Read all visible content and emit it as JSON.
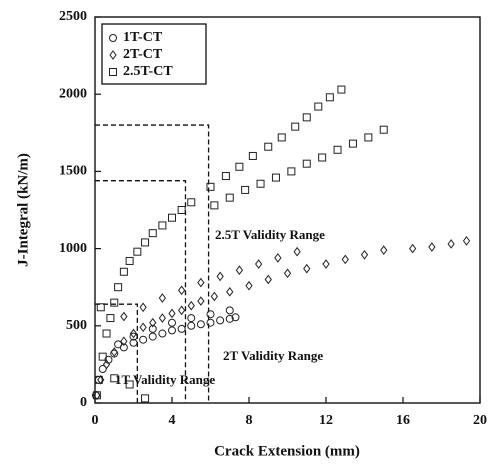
{
  "chart_data": {
    "type": "scatter",
    "x_label": "Crack Extension (mm)",
    "y_label": "J-Integral (kN/m)",
    "xlim": [
      0,
      20
    ],
    "xticks": [
      0,
      4,
      8,
      12,
      16,
      20
    ],
    "ylim": [
      0,
      2500
    ],
    "yticks": [
      0,
      500,
      1000,
      1500,
      2000,
      2500
    ],
    "legend": "upper left",
    "series": [
      {
        "name": "1T-CT",
        "marker": "circle",
        "color": "#222222",
        "x": [
          0.05,
          0.2,
          0.4,
          0.7,
          1.0,
          1.5,
          2.0,
          2.5,
          3.0,
          3.5,
          4.0,
          4.5,
          5.0,
          5.5,
          6.0,
          6.5,
          7.0,
          7.3,
          1.2,
          2.0,
          3.0,
          4.0,
          5.0,
          6.0,
          7.0
        ],
        "values": [
          50,
          150,
          220,
          280,
          320,
          360,
          390,
          410,
          430,
          450,
          470,
          480,
          500,
          510,
          520,
          535,
          545,
          555,
          380,
          430,
          480,
          520,
          550,
          575,
          600
        ]
      },
      {
        "name": "2T-CT",
        "marker": "diamond",
        "color": "#222222",
        "x": [
          0.1,
          0.3,
          0.6,
          1.0,
          1.5,
          2.0,
          2.5,
          3.0,
          3.5,
          4.0,
          4.5,
          5.0,
          5.5,
          6.2,
          7.0,
          8.0,
          9.0,
          10.0,
          11.0,
          12.0,
          13.0,
          14.0,
          15.0,
          16.5,
          17.5,
          18.5,
          19.3,
          1.5,
          2.5,
          3.5,
          4.5,
          5.5,
          6.5,
          7.5,
          8.5,
          9.5,
          10.5
        ],
        "values": [
          50,
          150,
          250,
          330,
          400,
          450,
          490,
          520,
          550,
          580,
          600,
          630,
          660,
          690,
          720,
          760,
          800,
          840,
          870,
          900,
          930,
          960,
          990,
          1000,
          1010,
          1030,
          1050,
          560,
          620,
          680,
          730,
          780,
          820,
          860,
          900,
          940,
          980
        ]
      },
      {
        "name": "2.5T-CT",
        "marker": "square",
        "color": "#222222",
        "x": [
          0.1,
          0.2,
          0.4,
          0.6,
          0.8,
          1.0,
          1.2,
          1.5,
          1.8,
          2.2,
          2.6,
          3.0,
          3.5,
          4.0,
          4.5,
          5.0,
          6.0,
          6.8,
          7.5,
          8.2,
          9.0,
          9.7,
          10.4,
          11.0,
          11.6,
          12.2,
          12.8,
          6.2,
          7.0,
          7.8,
          8.6,
          9.4,
          10.2,
          11.0,
          11.8,
          12.6,
          13.4,
          14.2,
          15.0,
          0.3,
          1.0,
          1.8,
          2.6
        ],
        "values": [
          50,
          150,
          300,
          450,
          550,
          650,
          750,
          850,
          920,
          980,
          1040,
          1100,
          1150,
          1200,
          1250,
          1300,
          1400,
          1470,
          1530,
          1600,
          1660,
          1720,
          1790,
          1850,
          1920,
          1980,
          2030,
          1280,
          1330,
          1380,
          1420,
          1460,
          1500,
          1550,
          1590,
          1640,
          1680,
          1720,
          1770,
          620,
          160,
          120,
          30
        ]
      }
    ],
    "validity_ranges": [
      {
        "label": "1T Validity Range",
        "x": 2.2,
        "y": 640
      },
      {
        "label": "2T Validity Range",
        "x": 4.7,
        "y": 1440
      },
      {
        "label": "2.5T Validity Range",
        "x": 5.9,
        "y": 1800
      }
    ]
  }
}
